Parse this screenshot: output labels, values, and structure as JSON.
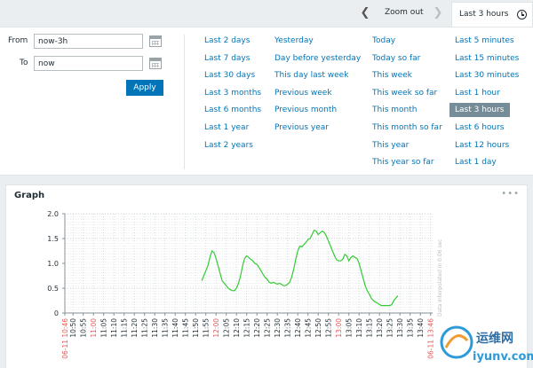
{
  "topbar": {
    "zoom_out": "Zoom out",
    "active_tab": "Last 3 hours"
  },
  "filter": {
    "from_label": "From",
    "from_value": "now-3h",
    "to_label": "To",
    "to_value": "now",
    "apply_label": "Apply"
  },
  "quick_ranges": [
    [
      "Last 2 days",
      "Last 7 days",
      "Last 30 days",
      "Last 3 months",
      "Last 6 months",
      "Last 1 year",
      "Last 2 years"
    ],
    [
      "Yesterday",
      "Day before yesterday",
      "This day last week",
      "Previous week",
      "Previous month",
      "Previous year"
    ],
    [
      "Today",
      "Today so far",
      "This week",
      "This week so far",
      "This month",
      "This month so far",
      "This year",
      "This year so far"
    ],
    [
      "Last 5 minutes",
      "Last 15 minutes",
      "Last 30 minutes",
      "Last 1 hour",
      "Last 3 hours",
      "Last 6 hours",
      "Last 12 hours",
      "Last 1 day"
    ]
  ],
  "selected_range": "Last 3 hours",
  "widget": {
    "title": "Graph",
    "menu": "•••"
  },
  "chart_data": {
    "type": "line",
    "title": "Graph",
    "ylim": [
      0,
      2.0
    ],
    "yticks": [
      "2.0",
      "1.5",
      "1.0",
      "0.5",
      "0"
    ],
    "xticks": [
      "06-11 10:46",
      "10:50",
      "10:55",
      "11:00",
      "11:05",
      "11:10",
      "11:15",
      "11:20",
      "11:25",
      "11:30",
      "11:35",
      "11:40",
      "11:45",
      "11:50",
      "11:55",
      "12:00",
      "12:05",
      "12:10",
      "12:15",
      "12:20",
      "12:25",
      "12:30",
      "12:35",
      "12:40",
      "12:45",
      "12:50",
      "12:55",
      "13:00",
      "13:05",
      "13:10",
      "13:15",
      "13:20",
      "13:25",
      "13:30",
      "13:35",
      "13:40",
      "06-11 13:46"
    ],
    "xticks_red": [
      "06-11 10:46",
      "11:00",
      "12:00",
      "13:00",
      "06-11 13:46"
    ],
    "x_start_min": 0,
    "x_end_min": 180,
    "side_note": "Data interpolated in 0.06 sec",
    "line_color": "#33cc33",
    "series": [
      {
        "name": "value",
        "points": [
          [
            67,
            0.65
          ],
          [
            68,
            0.75
          ],
          [
            69,
            0.85
          ],
          [
            70,
            0.95
          ],
          [
            71,
            1.12
          ],
          [
            72,
            1.25
          ],
          [
            73,
            1.22
          ],
          [
            74,
            1.1
          ],
          [
            75,
            0.95
          ],
          [
            76,
            0.8
          ],
          [
            77,
            0.65
          ],
          [
            78,
            0.6
          ],
          [
            79,
            0.55
          ],
          [
            80,
            0.5
          ],
          [
            81,
            0.47
          ],
          [
            82,
            0.45
          ],
          [
            83,
            0.45
          ],
          [
            84,
            0.5
          ],
          [
            85,
            0.6
          ],
          [
            86,
            0.75
          ],
          [
            87,
            0.95
          ],
          [
            88,
            1.1
          ],
          [
            89,
            1.15
          ],
          [
            90,
            1.12
          ],
          [
            91,
            1.08
          ],
          [
            92,
            1.05
          ],
          [
            93,
            1.0
          ],
          [
            94,
            0.98
          ],
          [
            95,
            0.92
          ],
          [
            96,
            0.85
          ],
          [
            97,
            0.78
          ],
          [
            98,
            0.72
          ],
          [
            99,
            0.68
          ],
          [
            100,
            0.62
          ],
          [
            101,
            0.6
          ],
          [
            102,
            0.62
          ],
          [
            103,
            0.6
          ],
          [
            104,
            0.58
          ],
          [
            105,
            0.6
          ],
          [
            106,
            0.58
          ],
          [
            107,
            0.55
          ],
          [
            108,
            0.55
          ],
          [
            109,
            0.58
          ],
          [
            110,
            0.62
          ],
          [
            111,
            0.72
          ],
          [
            112,
            0.88
          ],
          [
            113,
            1.08
          ],
          [
            114,
            1.25
          ],
          [
            115,
            1.35
          ],
          [
            116,
            1.33
          ],
          [
            117,
            1.38
          ],
          [
            118,
            1.42
          ],
          [
            119,
            1.48
          ],
          [
            120,
            1.5
          ],
          [
            121,
            1.58
          ],
          [
            122,
            1.67
          ],
          [
            123,
            1.65
          ],
          [
            124,
            1.58
          ],
          [
            125,
            1.62
          ],
          [
            126,
            1.65
          ],
          [
            127,
            1.62
          ],
          [
            128,
            1.55
          ],
          [
            129,
            1.45
          ],
          [
            130,
            1.35
          ],
          [
            131,
            1.25
          ],
          [
            132,
            1.15
          ],
          [
            133,
            1.07
          ],
          [
            134,
            1.05
          ],
          [
            135,
            1.05
          ],
          [
            136,
            1.08
          ],
          [
            137,
            1.18
          ],
          [
            138,
            1.15
          ],
          [
            139,
            1.05
          ],
          [
            140,
            1.12
          ],
          [
            141,
            1.15
          ],
          [
            142,
            1.12
          ],
          [
            143,
            1.1
          ],
          [
            144,
            1.0
          ],
          [
            145,
            0.85
          ],
          [
            146,
            0.7
          ],
          [
            147,
            0.55
          ],
          [
            148,
            0.45
          ],
          [
            149,
            0.38
          ],
          [
            150,
            0.3
          ],
          [
            151,
            0.25
          ],
          [
            152,
            0.22
          ],
          [
            153,
            0.2
          ],
          [
            154,
            0.17
          ],
          [
            155,
            0.15
          ],
          [
            156,
            0.15
          ],
          [
            157,
            0.15
          ],
          [
            158,
            0.15
          ],
          [
            159,
            0.15
          ],
          [
            160,
            0.17
          ],
          [
            161,
            0.25
          ],
          [
            162,
            0.3
          ],
          [
            163,
            0.35
          ]
        ]
      }
    ]
  }
}
